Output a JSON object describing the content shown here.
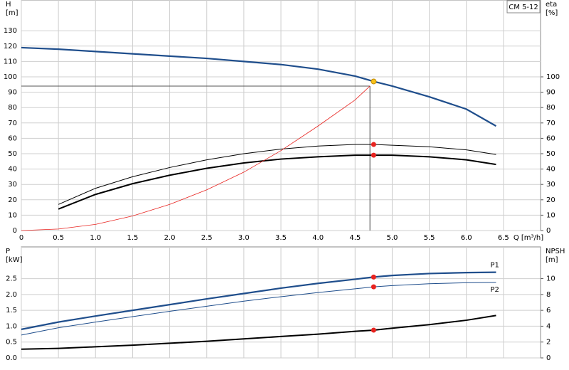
{
  "chart_data": [
    {
      "type": "line",
      "annotation": "CM 5-12",
      "ylabel": "H",
      "yunit": "[m]",
      "y2label": "eta",
      "y2unit": "[%]",
      "xlabel": "Q [m³/h]",
      "xlim": [
        0,
        7
      ],
      "ylim": [
        0,
        150
      ],
      "y2lim": [
        0,
        150
      ],
      "grid": true,
      "xticks": [
        0,
        0.5,
        {
          "value": 1,
          "label": "1.0"
        },
        1.5,
        {
          "value": 2,
          "label": "2.0"
        },
        2.5,
        {
          "value": 3,
          "label": "3.0"
        },
        3.5,
        {
          "value": 4,
          "label": "4.0"
        },
        4.5,
        {
          "value": 5,
          "label": "5.0"
        },
        5.5,
        {
          "value": 6,
          "label": "6.0"
        },
        6.5
      ],
      "yticks": [
        0,
        10,
        20,
        30,
        40,
        50,
        60,
        70,
        80,
        90,
        100,
        110,
        120,
        130
      ],
      "y2ticks": [
        0,
        10,
        20,
        30,
        40,
        50,
        60,
        70,
        80,
        90,
        100
      ],
      "series": [
        {
          "color": "#1f4e8c",
          "line_width": 2.2,
          "x": [
            0,
            0.5,
            1,
            1.5,
            2,
            2.5,
            3,
            3.5,
            4,
            4.5,
            4.75,
            5,
            5.5,
            6,
            6.4
          ],
          "values": [
            119,
            118,
            116.5,
            115,
            113.5,
            112,
            110,
            108,
            105,
            100.5,
            97,
            94,
            87,
            79,
            68
          ]
        },
        {
          "color": "#000000",
          "line_width": 1,
          "axis": "y2",
          "x": [
            0.5,
            1,
            1.5,
            2,
            2.5,
            3,
            3.5,
            4,
            4.5,
            4.75,
            5,
            5.5,
            6,
            6.4
          ],
          "values": [
            17,
            27.5,
            35,
            41,
            46,
            50,
            53,
            55,
            56,
            56,
            55.5,
            54.5,
            52.5,
            49.5
          ]
        },
        {
          "color": "#000000",
          "line_width": 2,
          "axis": "y2",
          "x": [
            0.5,
            1,
            1.5,
            2,
            2.5,
            3,
            3.5,
            4,
            4.5,
            4.75,
            5,
            5.5,
            6,
            6.4
          ],
          "values": [
            14,
            23.5,
            30.5,
            36,
            40.5,
            44,
            46.5,
            48,
            49,
            49,
            49,
            48,
            46,
            43
          ]
        },
        {
          "color": "#e8231f",
          "line_width": 0.8,
          "x": [
            0,
            0.5,
            1,
            1.5,
            2,
            2.5,
            3,
            3.5,
            4,
            4.5,
            4.7
          ],
          "values": [
            0,
            1,
            4,
            9.5,
            17,
            26.5,
            38,
            52,
            68,
            85,
            94
          ]
        }
      ],
      "crosshair": {
        "x": 4.7,
        "y": 94,
        "color": "#555555"
      },
      "markers": [
        {
          "x": 4.75,
          "y": 97,
          "color": "#f7c21b"
        },
        {
          "x": 4.75,
          "y": 56,
          "axis": "y2",
          "color": "#e8231f"
        },
        {
          "x": 4.75,
          "y": 49,
          "axis": "y2",
          "color": "#e8231f"
        }
      ]
    },
    {
      "type": "line",
      "ylabel": "P",
      "yunit": "[kW]",
      "y2label": "NPSH",
      "y2unit": "[m]",
      "xlim": [
        0,
        7
      ],
      "ylim": [
        0,
        3.5
      ],
      "y2lim": [
        0,
        14
      ],
      "grid": true,
      "xticks": [
        0,
        0.5,
        1,
        1.5,
        2,
        2.5,
        3,
        3.5,
        4,
        4.5,
        5,
        5.5,
        6,
        6.5
      ],
      "yticks": [
        {
          "value": 0,
          "label": "0.0"
        },
        0.5,
        {
          "value": 1,
          "label": "1.0"
        },
        1.5,
        {
          "value": 2,
          "label": "2.0"
        },
        2.5
      ],
      "y2ticks": [
        0,
        2,
        4,
        6,
        8,
        10
      ],
      "series": [
        {
          "name": "P1",
          "color": "#1f4e8c",
          "line_width": 2.2,
          "x": [
            0,
            0.5,
            1,
            1.5,
            2,
            2.5,
            3,
            3.5,
            4,
            4.5,
            4.75,
            5,
            5.5,
            6,
            6.4
          ],
          "values": [
            0.9,
            1.13,
            1.32,
            1.5,
            1.68,
            1.86,
            2.03,
            2.2,
            2.35,
            2.48,
            2.55,
            2.6,
            2.66,
            2.69,
            2.7
          ]
        },
        {
          "name": "P2",
          "color": "#1f4e8c",
          "line_width": 1,
          "x": [
            0,
            0.5,
            1,
            1.5,
            2,
            2.5,
            3,
            3.5,
            4,
            4.5,
            4.75,
            5,
            5.5,
            6,
            6.4
          ],
          "values": [
            0.72,
            0.95,
            1.13,
            1.3,
            1.47,
            1.63,
            1.79,
            1.93,
            2.06,
            2.18,
            2.24,
            2.28,
            2.34,
            2.37,
            2.38
          ]
        },
        {
          "color": "#000000",
          "line_width": 2,
          "axis": "y2",
          "x": [
            0,
            0.5,
            1,
            1.5,
            2,
            2.5,
            3,
            3.5,
            4,
            4.5,
            4.75,
            5,
            5.5,
            6,
            6.4
          ],
          "values": [
            1.1,
            1.2,
            1.4,
            1.6,
            1.85,
            2.1,
            2.4,
            2.7,
            3.0,
            3.35,
            3.5,
            3.75,
            4.2,
            4.75,
            5.35
          ]
        }
      ],
      "markers": [
        {
          "x": 4.75,
          "y": 2.55,
          "color": "#e8231f"
        },
        {
          "x": 4.75,
          "y": 2.24,
          "color": "#e8231f"
        },
        {
          "x": 4.75,
          "y": 3.5,
          "axis": "y2",
          "color": "#e8231f"
        }
      ]
    }
  ]
}
